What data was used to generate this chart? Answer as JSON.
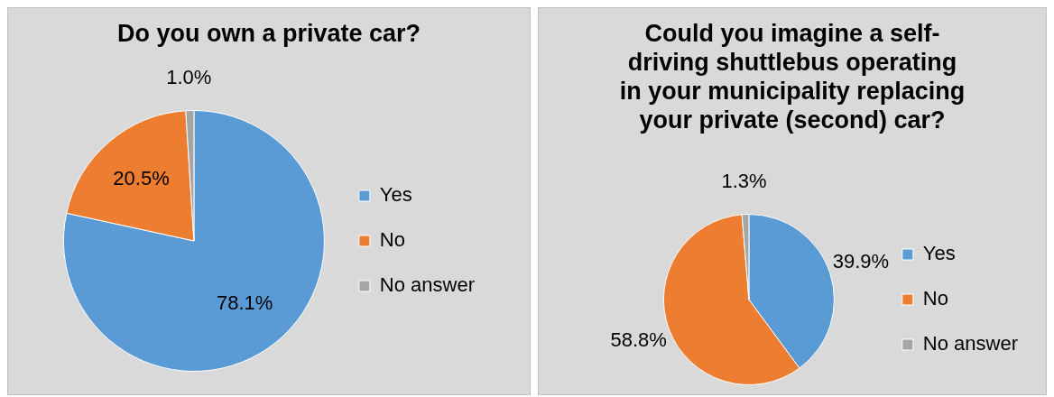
{
  "chart_data": [
    {
      "type": "pie",
      "title": "Do you own a private car?",
      "categories": [
        "Yes",
        "No",
        "No answer"
      ],
      "values": [
        78.1,
        20.5,
        1.0
      ],
      "value_labels": [
        "78.1%",
        "20.5%",
        "1.0%"
      ],
      "colors": [
        "#5b9bd5",
        "#ed7d31",
        "#a5a5a5"
      ],
      "legend": "right"
    },
    {
      "type": "pie",
      "title": "Could you imagine a self-driving shuttlebus operating in your municipality replacing your private (second) car?",
      "categories": [
        "Yes",
        "No",
        "No answer"
      ],
      "values": [
        39.9,
        58.8,
        1.3
      ],
      "value_labels": [
        "39.9%",
        "58.8%",
        "1.3%"
      ],
      "colors": [
        "#5b9bd5",
        "#ed7d31",
        "#a5a5a5"
      ],
      "legend": "right"
    }
  ]
}
